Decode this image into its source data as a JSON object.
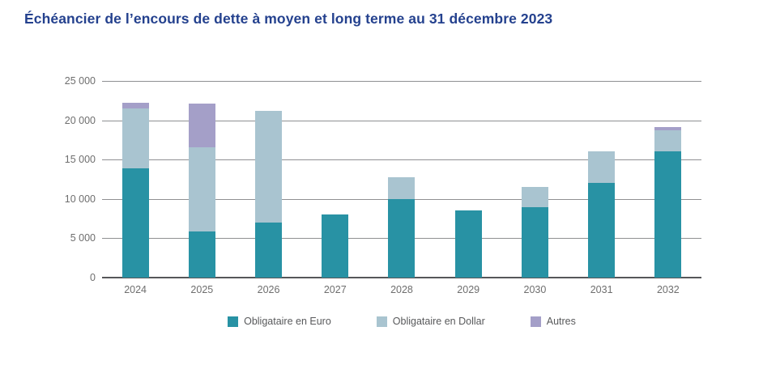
{
  "title": "Échéancier de l’encours de dette à moyen et long terme au 31 décembre 2023",
  "colors": {
    "title_text": "#24418e",
    "axis_text": "#6e6e6e",
    "legend_text": "#58595b",
    "gridline": "#8f9092",
    "axis_line": "#565759",
    "euro": "#2892a4",
    "dollar": "#a9c4d0",
    "autres": "#a49fc8"
  },
  "chart_data": {
    "type": "bar",
    "stacked": true,
    "title": "Échéancier de l’encours de dette à moyen et long terme au 31 décembre 2023",
    "xlabel": "",
    "ylabel": "",
    "ylim": [
      0,
      25000
    ],
    "grid": "horizontal",
    "legend_position": "bottom",
    "ytick_values": [
      0,
      5000,
      10000,
      15000,
      20000,
      25000
    ],
    "ytick_labels": [
      "0",
      "5 000",
      "10 000",
      "15 000",
      "20 000",
      "25 000"
    ],
    "categories": [
      "2024",
      "2025",
      "2026",
      "2027",
      "2028",
      "2029",
      "2030",
      "2031",
      "2032"
    ],
    "series": [
      {
        "name": "Obligataire en Euro",
        "color": "#2892a4",
        "values": [
          13900,
          5900,
          7000,
          8000,
          10000,
          8500,
          9000,
          12000,
          16000
        ]
      },
      {
        "name": "Obligataire en Dollar",
        "color": "#a9c4d0",
        "values": [
          7600,
          10700,
          14200,
          0,
          2800,
          0,
          2500,
          4100,
          2700
        ]
      },
      {
        "name": "Autres",
        "color": "#a49fc8",
        "values": [
          700,
          5500,
          0,
          0,
          0,
          0,
          0,
          0,
          400
        ]
      }
    ]
  }
}
